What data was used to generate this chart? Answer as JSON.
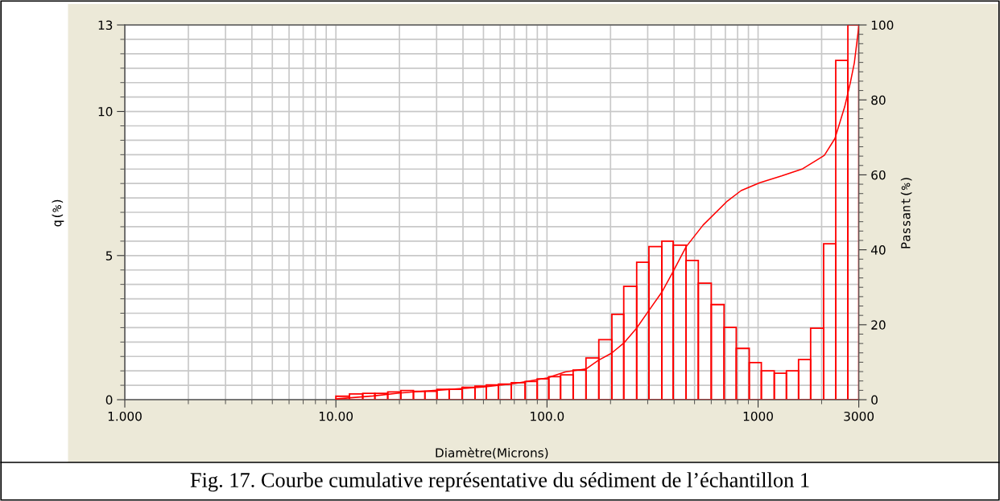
{
  "chart_data": {
    "type": "histogram",
    "xlabel": "Diamètre(Microns)",
    "ylabel": "q(%)",
    "y2label": "Passant(%)",
    "annotations": [
      "Fig. 17. Courbe cumulative représentative du sédiment de l’échantillon 1"
    ],
    "log": "x",
    "grid": true,
    "xlim": [
      1,
      3000
    ],
    "xticks": [
      {
        "value": 1,
        "label": "1.000"
      },
      {
        "value": 10,
        "label": "10.00"
      },
      {
        "value": 100,
        "label": "100.0"
      },
      {
        "value": 1000,
        "label": "1000"
      },
      {
        "value": 3000,
        "label": "3000"
      }
    ],
    "ylim": [
      0,
      13
    ],
    "yticks": [
      0,
      5,
      10,
      13
    ],
    "y2lim": [
      0,
      100
    ],
    "y2ticks": [
      0,
      20,
      40,
      60,
      80,
      100
    ],
    "bins": [
      10.0,
      11.6,
      13.4,
      15.3,
      17.6,
      20.3,
      23.3,
      26.4,
      30.1,
      34.4,
      39.6,
      45.6,
      51.6,
      58.9,
      67.8,
      78.8,
      89.9,
      102,
      116,
      133,
      153,
      176,
      203,
      231,
      266,
      304,
      350,
      396,
      456,
      521,
      600,
      690,
      788,
      908,
      1036,
      1193,
      1362,
      1555,
      1774,
      2044,
      2333,
      2663,
      3000
    ],
    "series": [
      {
        "type": "histogram",
        "color": "#ff0000",
        "values": [
          0.12,
          0.2,
          0.22,
          0.22,
          0.27,
          0.32,
          0.29,
          0.29,
          0.36,
          0.36,
          0.43,
          0.47,
          0.51,
          0.54,
          0.59,
          0.63,
          0.72,
          0.8,
          0.86,
          1.03,
          1.45,
          2.08,
          2.96,
          3.93,
          4.77,
          5.31,
          5.5,
          5.36,
          4.83,
          4.04,
          3.3,
          2.51,
          1.78,
          1.29,
          1.0,
          0.92,
          1.0,
          1.39,
          2.48,
          5.41,
          11.77,
          13
        ]
      },
      {
        "type": "line",
        "axis": "y2",
        "color": "#ff0000",
        "x": [
          10,
          15,
          20,
          30,
          50,
          70,
          100,
          122,
          153,
          175,
          202,
          231,
          265,
          303,
          350,
          395,
          456,
          549,
          715,
          831,
          1018,
          1292,
          1625,
          2061,
          2312,
          2570,
          2733,
          2858,
          3000
        ],
        "values": [
          0.2,
          1,
          1.8,
          2.5,
          3.4,
          4.3,
          5.8,
          7.4,
          8.2,
          10.5,
          12.4,
          15.1,
          19.0,
          23.7,
          28.7,
          34.1,
          40.8,
          46.6,
          53,
          55.8,
          57.9,
          59.7,
          61.6,
          65.2,
          69.7,
          78.1,
          84.5,
          89.9,
          99.6
        ]
      }
    ]
  }
}
